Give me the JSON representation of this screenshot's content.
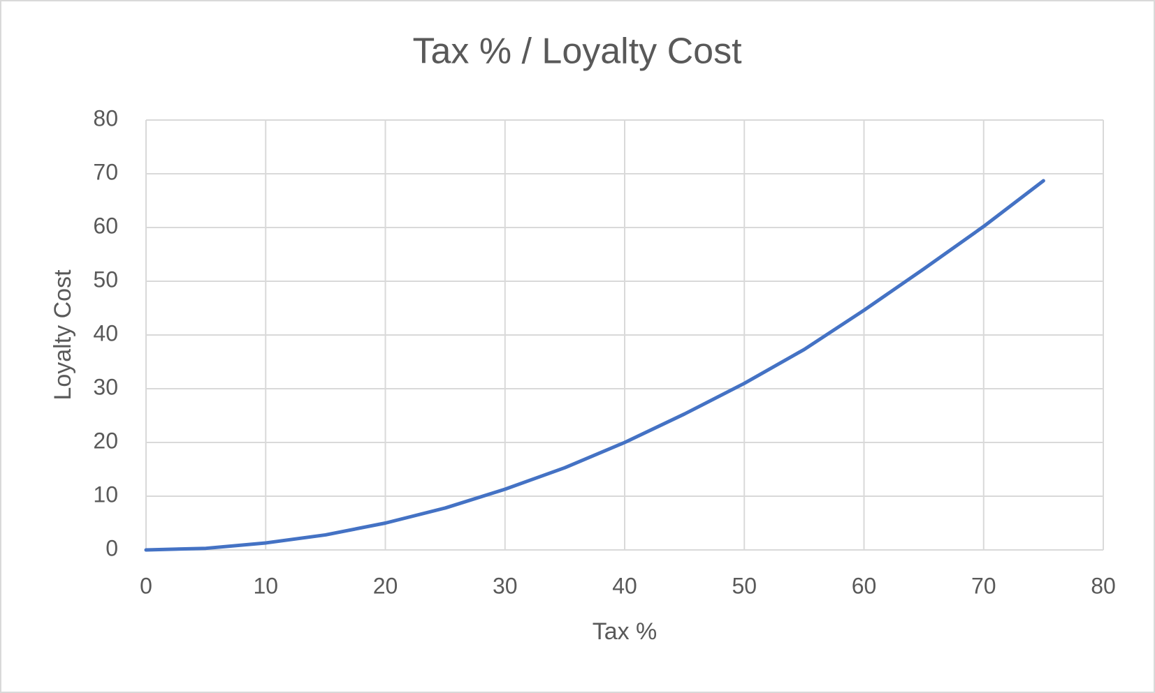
{
  "chart_data": {
    "type": "line",
    "title": "Tax % / Loyalty Cost",
    "x_label": "Tax %",
    "y_label": "Loyalty Cost",
    "x": [
      0,
      5,
      10,
      15,
      20,
      25,
      30,
      35,
      40,
      45,
      50,
      55,
      60,
      65,
      70,
      75
    ],
    "series": [
      {
        "name": "Loyalty Cost",
        "color": "#4472c4",
        "values": [
          0,
          0.3,
          1.3,
          2.8,
          5,
          7.8,
          11.3,
          15.3,
          20,
          25.3,
          31,
          37.3,
          44.6,
          52.3,
          60.2,
          68.7
        ]
      }
    ],
    "xlim": [
      0,
      80
    ],
    "xticks": [
      0,
      10,
      20,
      30,
      40,
      50,
      60,
      70,
      80
    ],
    "ylim": [
      0,
      80
    ],
    "yticks": [
      0,
      10,
      20,
      30,
      40,
      50,
      60,
      70,
      80
    ],
    "grid": true
  }
}
